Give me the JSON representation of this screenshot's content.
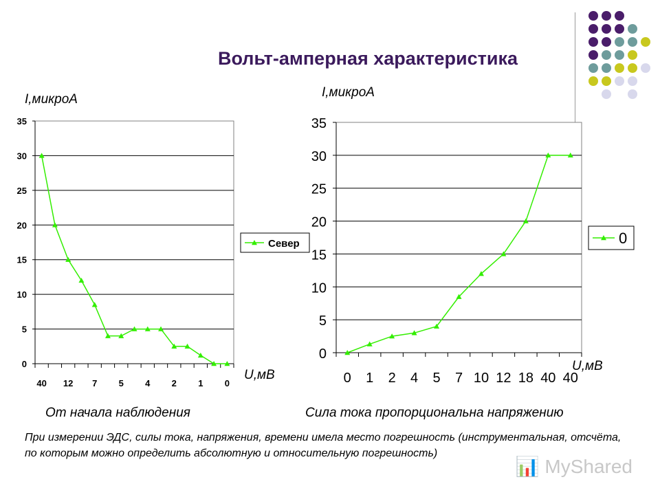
{
  "slide": {
    "title": "Вольт-амперная  характеристика",
    "note": "При измерении ЭДС, силы тока, напряжения, времени имела место погрешность (инструментальная, отсчёта, по которым можно определить абсолютную и относительную погрешность)",
    "watermark": "MyShared"
  },
  "colors": {
    "title": "#3b1a5c",
    "series": "#33ee00",
    "purple": "#4a1d6a",
    "teal": "#6e9c9c",
    "olive": "#c8c81e",
    "lavender": "#d8d8ec"
  },
  "chart_data": [
    {
      "type": "line",
      "ylabel": "I,микроА",
      "xlabel": "U,мВ",
      "caption": "От начала наблюдения",
      "ylim": [
        0,
        35
      ],
      "yticks": [
        "0",
        "5",
        "10",
        "15",
        "20",
        "25",
        "30",
        "35"
      ],
      "x_tick_labels": [
        "40",
        "12",
        "7",
        "5",
        "4",
        "2",
        "1",
        "0"
      ],
      "grid": true,
      "legend_position": "right",
      "series": [
        {
          "name": "Север",
          "values": [
            30,
            20,
            15,
            12,
            8.5,
            4,
            4,
            5,
            5,
            5,
            2.5,
            2.5,
            1.2,
            0,
            0
          ]
        }
      ]
    },
    {
      "type": "line",
      "ylabel": "I,микроА",
      "xlabel": "U,мВ",
      "caption": "Сила тока пропорциональна напряжению",
      "ylim": [
        0,
        35
      ],
      "yticks": [
        "0",
        "5",
        "10",
        "15",
        "20",
        "25",
        "30",
        "35"
      ],
      "categories": [
        "0",
        "1",
        "2",
        "4",
        "5",
        "7",
        "10",
        "12",
        "18",
        "40",
        "40"
      ],
      "grid": true,
      "legend_position": "right",
      "series": [
        {
          "name": "0",
          "values": [
            0,
            1.3,
            2.5,
            3,
            4,
            8.5,
            12,
            15,
            20,
            30,
            30
          ]
        }
      ]
    }
  ]
}
